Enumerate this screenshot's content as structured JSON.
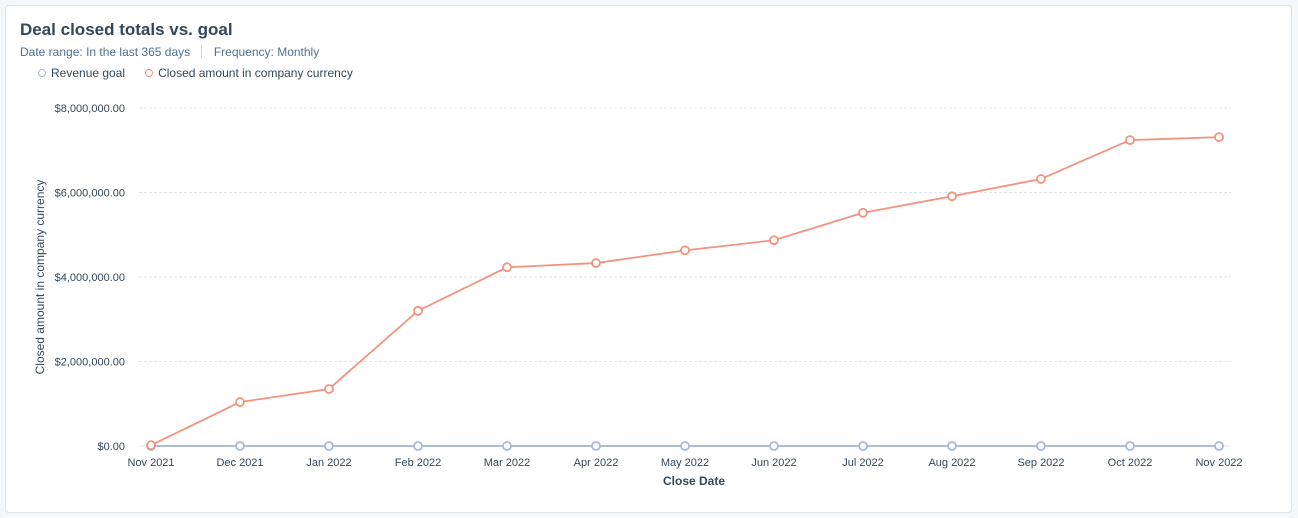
{
  "header": {
    "title": "Deal closed totals vs. goal",
    "date_range_label": "Date range:",
    "date_range_value": "In the last 365 days",
    "frequency_label": "Frequency:",
    "frequency_value": "Monthly"
  },
  "colors": {
    "closed": "#f2937d",
    "goal": "#a7b8d9",
    "goal_line": "#7c98b6",
    "grid": "#dfe3eb"
  },
  "chart_data": {
    "type": "line",
    "title": "Deal closed totals vs. goal",
    "xlabel": "Close Date",
    "ylabel": "Closed amount in company currency",
    "categories": [
      "Nov 2021",
      "Dec 2021",
      "Jan 2022",
      "Feb 2022",
      "Mar 2022",
      "Apr 2022",
      "May 2022",
      "Jun 2022",
      "Jul 2022",
      "Aug 2022",
      "Sep 2022",
      "Oct 2022",
      "Nov 2022"
    ],
    "ylim": [
      0,
      8000000
    ],
    "yticks": [
      0,
      2000000,
      4000000,
      6000000,
      8000000
    ],
    "ytick_labels": [
      "$0.00",
      "$2,000,000.00",
      "$4,000,000.00",
      "$6,000,000.00",
      "$8,000,000.00"
    ],
    "grid": true,
    "legend_position": "top-left",
    "series": [
      {
        "name": "Revenue goal",
        "color": "#a7b8d9",
        "values": [
          0,
          0,
          0,
          0,
          0,
          0,
          0,
          0,
          0,
          0,
          0,
          0,
          0
        ]
      },
      {
        "name": "Closed amount in company currency",
        "color": "#f2937d",
        "values": [
          20000,
          1040000,
          1350000,
          3200000,
          4230000,
          4330000,
          4630000,
          4870000,
          5520000,
          5910000,
          6320000,
          7240000,
          7310000
        ]
      }
    ]
  }
}
